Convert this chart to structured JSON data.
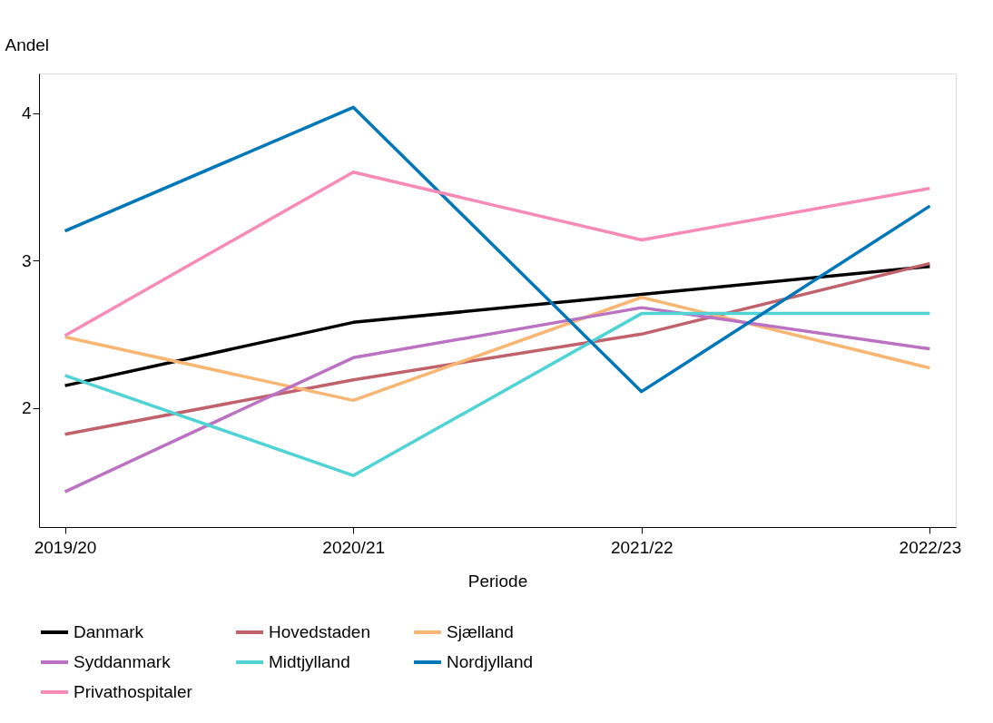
{
  "chart_data": {
    "type": "line",
    "xlabel": "Periode",
    "ylabel": "Andel",
    "categories": [
      "2019/20",
      "2020/21",
      "2021/22",
      "2022/23"
    ],
    "ylim": [
      1.19,
      4.27
    ],
    "yticks": [
      2,
      3,
      4
    ],
    "grid": false,
    "legend": "bottom",
    "marker": "none",
    "line_style": "solid",
    "series": [
      {
        "name": "Danmark",
        "color": "#000000",
        "values": [
          2.15,
          2.58,
          2.77,
          2.96
        ]
      },
      {
        "name": "Hovedstaden",
        "color": "#c0616b",
        "values": [
          1.82,
          2.19,
          2.5,
          2.98
        ]
      },
      {
        "name": "Sjælland",
        "color": "#f9b572",
        "values": [
          2.48,
          2.05,
          2.75,
          2.27
        ]
      },
      {
        "name": "Syddanmark",
        "color": "#bc72c2",
        "values": [
          1.43,
          2.34,
          2.68,
          2.4
        ]
      },
      {
        "name": "Midtjylland",
        "color": "#4fd3d5",
        "values": [
          2.22,
          1.54,
          2.64,
          2.64
        ]
      },
      {
        "name": "Nordjylland",
        "color": "#0077b8",
        "values": [
          3.2,
          4.04,
          2.11,
          3.37
        ]
      },
      {
        "name": "Privathospitaler",
        "color": "#f78bb6",
        "values": [
          2.49,
          3.6,
          3.14,
          3.49
        ]
      }
    ]
  }
}
